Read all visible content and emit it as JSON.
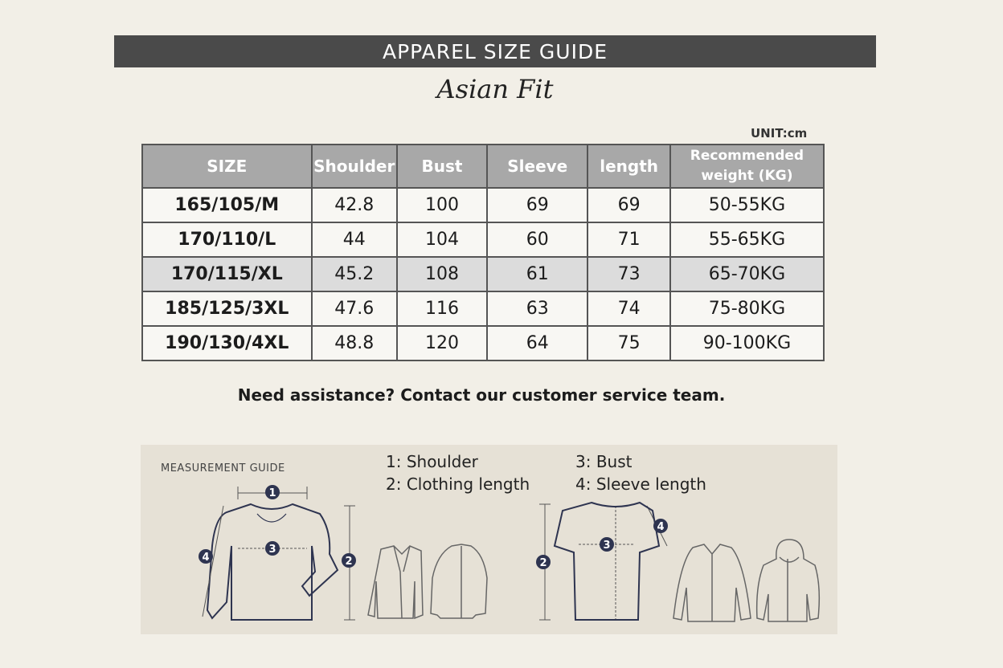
{
  "header": {
    "title": "APPAREL SIZE GUIDE",
    "subtitle": "Asian Fit",
    "unit": "UNIT:cm"
  },
  "table": {
    "columns": [
      "SIZE",
      "Shoulder",
      "Bust",
      "Sleeve",
      "length",
      "Recommended weight (KG)"
    ],
    "rows": [
      [
        "165/105/M",
        "42.8",
        "100",
        "69",
        "69",
        "50-55KG"
      ],
      [
        "170/110/L",
        "44",
        "104",
        "60",
        "71",
        "55-65KG"
      ],
      [
        "170/115/XL",
        "45.2",
        "108",
        "61",
        "73",
        "65-70KG"
      ],
      [
        "185/125/3XL",
        "47.6",
        "116",
        "63",
        "74",
        "75-80KG"
      ],
      [
        "190/130/4XL",
        "48.8",
        "120",
        "64",
        "75",
        "90-100KG"
      ]
    ]
  },
  "note": "Need assistance? Contact our customer service team.",
  "guide": {
    "title": "MEASUREMENT GUIDE",
    "legend": [
      "1:  Shoulder",
      "2:  Clothing length",
      "3:  Bust",
      "4:  Sleeve length"
    ],
    "markers": [
      "1",
      "2",
      "3",
      "4"
    ]
  }
}
